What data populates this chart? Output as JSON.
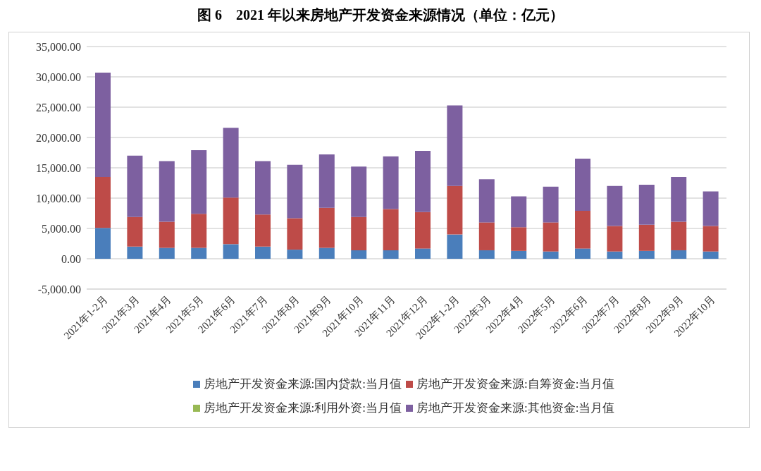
{
  "chart_data": {
    "type": "bar",
    "title": "图 6　2021 年以来房地产开发资金来源情况（单位：亿元）",
    "categories": [
      "2021年1-2月",
      "2021年3月",
      "2021年4月",
      "2021年5月",
      "2021年6月",
      "2021年7月",
      "2021年8月",
      "2021年9月",
      "2021年10月",
      "2021年11月",
      "2021年12月",
      "2022年1-2月",
      "2022年3月",
      "2022年4月",
      "2022年5月",
      "2022年6月",
      "2022年7月",
      "2022年8月",
      "2022年9月",
      "2022年10月"
    ],
    "stacked": true,
    "series": [
      {
        "name": "房地产开发资金来源:国内贷款:当月值",
        "color": "#4a7ebb",
        "values": [
          5100,
          2000,
          1800,
          1800,
          2400,
          2000,
          1500,
          1800,
          1400,
          1400,
          1700,
          4000,
          1400,
          1300,
          1200,
          1700,
          1200,
          1300,
          1400,
          1200
        ]
      },
      {
        "name": "房地产开发资金来源:自筹资金:当月值",
        "color": "#be4b48",
        "values": [
          8400,
          4900,
          4300,
          5600,
          7700,
          5300,
          5200,
          6600,
          5500,
          6800,
          6000,
          8000,
          4600,
          3900,
          4800,
          6200,
          4200,
          4300,
          4700,
          4200
        ]
      },
      {
        "name": "房地产开发资金来源:利用外资:当月值",
        "color": "#98b954",
        "values": [
          0,
          0,
          0,
          0,
          0,
          0,
          0,
          0,
          0,
          0,
          0,
          0,
          0,
          0,
          0,
          0,
          0,
          0,
          0,
          0
        ]
      },
      {
        "name": "房地产开发资金来源:其他资金:当月值",
        "color": "#7d60a0",
        "values": [
          17200,
          10100,
          10000,
          10500,
          11500,
          8800,
          8800,
          8800,
          8300,
          8700,
          10100,
          13300,
          7100,
          5100,
          5900,
          8600,
          6600,
          6600,
          7400,
          5700
        ]
      }
    ],
    "ylim": [
      -5000,
      35000
    ],
    "yticks": [
      {
        "value": -5000,
        "label": "-5,000.00"
      },
      {
        "value": 0,
        "label": "0.00"
      },
      {
        "value": 5000,
        "label": "5,000.00"
      },
      {
        "value": 10000,
        "label": "10,000.00"
      },
      {
        "value": 15000,
        "label": "15,000.00"
      },
      {
        "value": 20000,
        "label": "20,000.00"
      },
      {
        "value": 25000,
        "label": "25,000.00"
      },
      {
        "value": 30000,
        "label": "30,000.00"
      },
      {
        "value": 35000,
        "label": "35,000.00"
      }
    ],
    "grid": "y",
    "legend": "bottom"
  }
}
